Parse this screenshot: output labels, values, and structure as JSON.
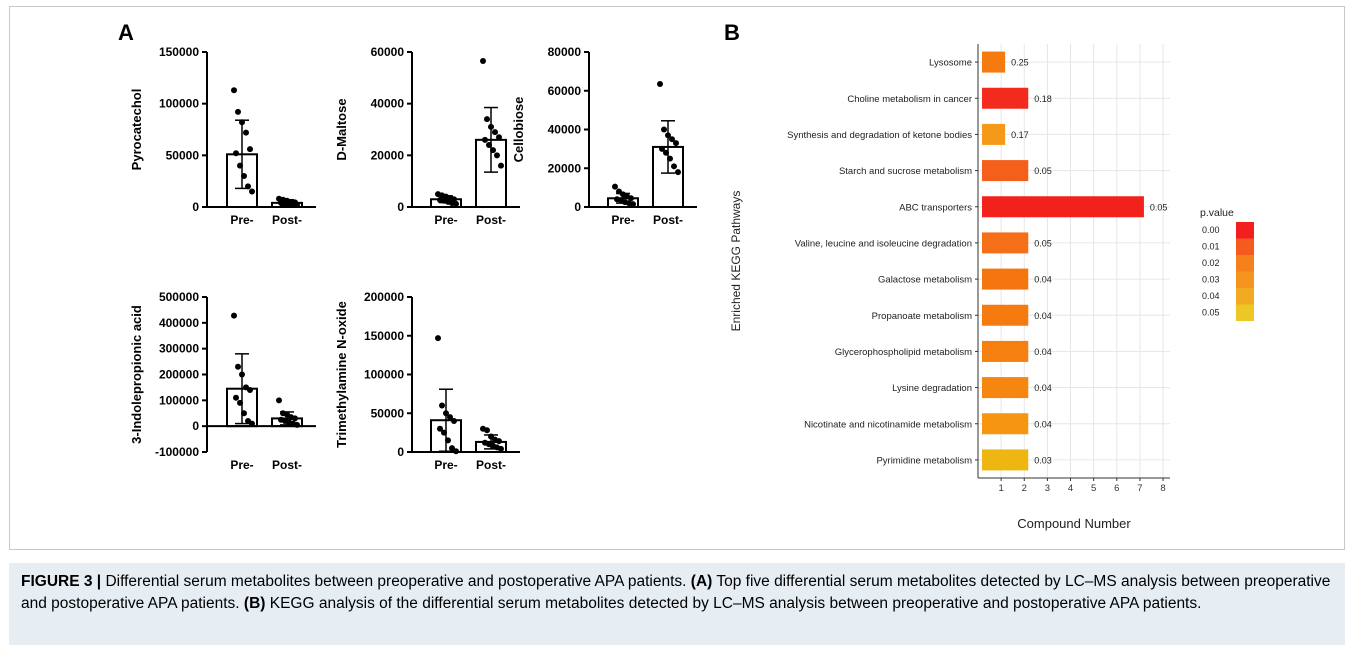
{
  "panels": {
    "a_letter": "A",
    "b_letter": "B"
  },
  "colors": {
    "bar_outline": "#000000",
    "point": "#000000",
    "grid": "#e6e6e6"
  },
  "chart_data": [
    {
      "type": "bar",
      "panel": "A",
      "ylabel": "Pyrocatechol",
      "categories": [
        "Pre-",
        "Post-"
      ],
      "values": [
        51000,
        4000
      ],
      "error_upper": [
        84000,
        7000
      ],
      "error_lower": [
        18000,
        1500
      ],
      "points": [
        [
          113000,
          92000,
          82000,
          72000,
          56000,
          52000,
          40000,
          30000,
          20000,
          15000
        ],
        [
          8000,
          7000,
          6000,
          5000,
          4500,
          4000,
          3500,
          3000,
          2500,
          2000
        ]
      ],
      "ylim": [
        0,
        150000
      ],
      "yticks": [
        "0",
        "50000",
        "100000",
        "150000"
      ],
      "ytick_values": [
        0,
        50000,
        100000,
        150000
      ]
    },
    {
      "type": "bar",
      "panel": "A",
      "ylabel": "D-Maltose",
      "categories": [
        "Pre-",
        "Post-"
      ],
      "values": [
        3000,
        26000
      ],
      "error_upper": [
        4300,
        38500
      ],
      "error_lower": [
        1700,
        13500
      ],
      "points": [
        [
          5000,
          4500,
          4000,
          3500,
          3000,
          2700,
          2400,
          2000,
          1500,
          1200
        ],
        [
          56500,
          34000,
          31000,
          29000,
          27000,
          26000,
          24000,
          22000,
          20000,
          16000
        ]
      ],
      "ylim": [
        0,
        60000
      ],
      "yticks": [
        "0",
        "20000",
        "40000",
        "60000"
      ],
      "ytick_values": [
        0,
        20000,
        40000,
        60000
      ]
    },
    {
      "type": "bar",
      "panel": "A",
      "ylabel": "Cellobiose",
      "categories": [
        "Pre-",
        "Post-"
      ],
      "values": [
        4500,
        31000
      ],
      "error_upper": [
        7000,
        44500
      ],
      "error_lower": [
        2000,
        17500
      ],
      "points": [
        [
          10500,
          8000,
          6500,
          5500,
          4500,
          4000,
          3500,
          2500,
          2000,
          1500
        ],
        [
          63500,
          40000,
          37000,
          35000,
          33000,
          30000,
          28000,
          25000,
          21000,
          18000
        ]
      ],
      "ylim": [
        0,
        80000
      ],
      "yticks": [
        "0",
        "20000",
        "40000",
        "60000",
        "80000"
      ],
      "ytick_values": [
        0,
        20000,
        40000,
        60000,
        80000
      ]
    },
    {
      "type": "bar",
      "panel": "A",
      "ylabel": "3-Indolepropionic acid",
      "categories": [
        "Pre-",
        "Post-"
      ],
      "values": [
        145000,
        30000
      ],
      "error_upper": [
        280000,
        55000
      ],
      "error_lower": [
        10000,
        5000
      ],
      "points": [
        [
          428000,
          230000,
          200000,
          150000,
          140000,
          110000,
          90000,
          50000,
          20000,
          10000
        ],
        [
          100000,
          50000,
          45000,
          35000,
          30000,
          25000,
          20000,
          15000,
          10000,
          5000
        ]
      ],
      "ylim": [
        -100000,
        500000
      ],
      "yticks": [
        "-100000",
        "0",
        "100000",
        "200000",
        "300000",
        "400000",
        "500000"
      ],
      "ytick_values": [
        -100000,
        0,
        100000,
        200000,
        300000,
        400000,
        500000
      ]
    },
    {
      "type": "bar",
      "panel": "A",
      "ylabel": "Trimethylamine N-oxide",
      "categories": [
        "Pre-",
        "Post-"
      ],
      "values": [
        41000,
        13000
      ],
      "error_upper": [
        81000,
        22000
      ],
      "error_lower": [
        1000,
        4000
      ],
      "points": [
        [
          147000,
          60000,
          50000,
          45000,
          40000,
          30000,
          25000,
          15000,
          5000,
          1000
        ],
        [
          30000,
          28000,
          20000,
          16000,
          14000,
          12000,
          10000,
          8000,
          6000,
          4000
        ]
      ],
      "ylim": [
        0,
        200000
      ],
      "yticks": [
        "0",
        "50000",
        "100000",
        "150000",
        "200000"
      ],
      "ytick_values": [
        0,
        50000,
        100000,
        150000,
        200000
      ]
    },
    {
      "type": "bar",
      "panel": "B",
      "orientation": "horizontal",
      "xlabel": "Compound Number",
      "ylabel": "Enriched KEGG Pathways",
      "categories": [
        "Lysosome",
        "Choline metabolism in cancer",
        "Synthesis and degradation of ketone bodies",
        "Starch and sucrose metabolism",
        "ABC transporters",
        "Valine, leucine and isoleucine degradation",
        "Galactose metabolism",
        "Propanoate metabolism",
        "Glycerophospholipid metabolism",
        "Lysine degradation",
        "Nicotinate and nicotinamide metabolism",
        "Pyrimidine metabolism"
      ],
      "values": [
        1,
        2,
        1,
        2,
        7,
        2,
        2,
        2,
        2,
        2,
        2,
        2
      ],
      "bar_labels": [
        "0.25",
        "0.18",
        "0.17",
        "0.05",
        "0.05",
        "0.05",
        "0.04",
        "0.04",
        "0.04",
        "0.04",
        "0.04",
        "0.03"
      ],
      "bar_colors": [
        "#f57a10",
        "#f32b1e",
        "#f59a18",
        "#f4601c",
        "#f3211c",
        "#f56e18",
        "#f5760f",
        "#f57a10",
        "#f5800f",
        "#f5860f",
        "#f59510",
        "#eeb610"
      ],
      "xticks": [
        "1",
        "2",
        "3",
        "4",
        "5",
        "6",
        "7",
        "8"
      ],
      "xlim": [
        0,
        8.3
      ],
      "grid": true,
      "legend": {
        "title": "p.value",
        "position": "right",
        "entries": [
          "0.00",
          "0.01",
          "0.02",
          "0.03",
          "0.04",
          "0.05"
        ],
        "colors": [
          "#f31e1e",
          "#f55a1e",
          "#f5801c",
          "#f5941e",
          "#f2aa22",
          "#ecc726"
        ]
      }
    }
  ],
  "caption": {
    "label": "FIGURE 3 |",
    "intro": " Differential serum metabolites between preoperative and postoperative APA patients. ",
    "a_tag": "(A)",
    "a_text": " Top five differential serum metabolites detected by LC–MS analysis between preoperative and postoperative APA patients. ",
    "b_tag": "(B)",
    "b_text": " KEGG analysis of the differential serum metabolites detected by LC–MS analysis between preoperative and postoperative APA patients."
  }
}
